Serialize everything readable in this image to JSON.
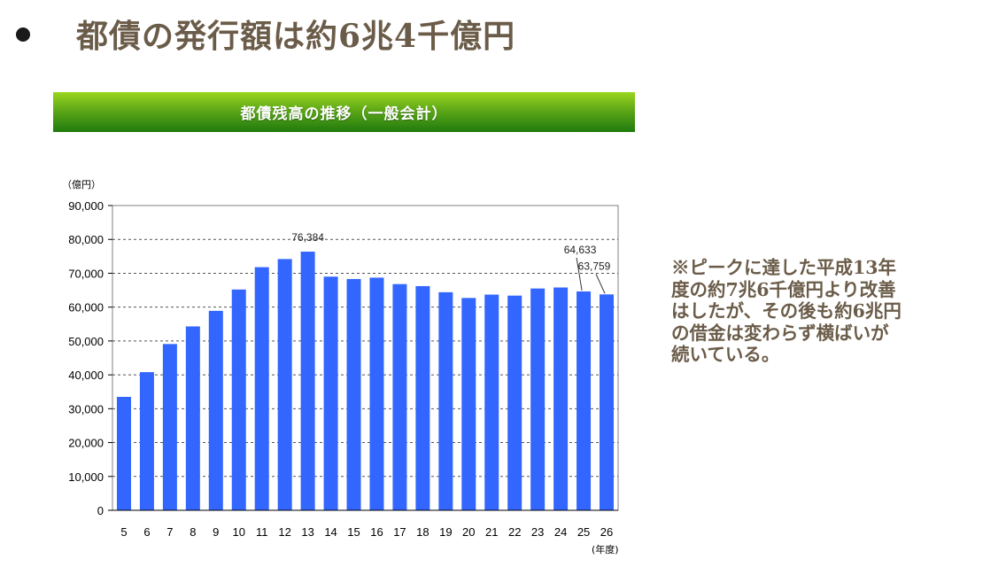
{
  "heading": {
    "bullet": "●",
    "text": "都債の発行額は約6兆4千億円"
  },
  "banner": {
    "title": "都債残高の推移（一般会計）",
    "colors": [
      "#9ad61e",
      "#1f7a0d"
    ]
  },
  "note": {
    "text": "※ピークに達した平成13年\n度の約7兆6千億円より改善\nはしたが、その後も約6兆円\nの借金は変わらず横ばいが\n続いている。"
  },
  "chart_data": {
    "type": "bar",
    "yunit": "（億円）",
    "xunit": "(年度)",
    "categories": [
      "5",
      "6",
      "7",
      "8",
      "9",
      "10",
      "11",
      "12",
      "13",
      "14",
      "15",
      "16",
      "17",
      "18",
      "19",
      "20",
      "21",
      "22",
      "23",
      "24",
      "25",
      "26"
    ],
    "values": [
      33500,
      40800,
      49100,
      54300,
      58900,
      65200,
      71800,
      74200,
      76384,
      69000,
      68300,
      68700,
      66800,
      66200,
      64400,
      62700,
      63700,
      63400,
      65500,
      65800,
      64633,
      63759
    ],
    "ylim": [
      0,
      90000
    ],
    "yticks": [
      0,
      10000,
      20000,
      30000,
      40000,
      50000,
      60000,
      70000,
      80000,
      90000
    ],
    "ytick_labels": [
      "0",
      "10,000",
      "20,000",
      "30,000",
      "40,000",
      "50,000",
      "60,000",
      "70,000",
      "80,000",
      "90,000"
    ],
    "annotations": [
      {
        "category": "13",
        "text": "76,384"
      },
      {
        "category": "25",
        "text": "64,633"
      },
      {
        "category": "26",
        "text": "63,759"
      }
    ],
    "bar_color": "#3366ff",
    "grid": "dashed horizontal"
  }
}
